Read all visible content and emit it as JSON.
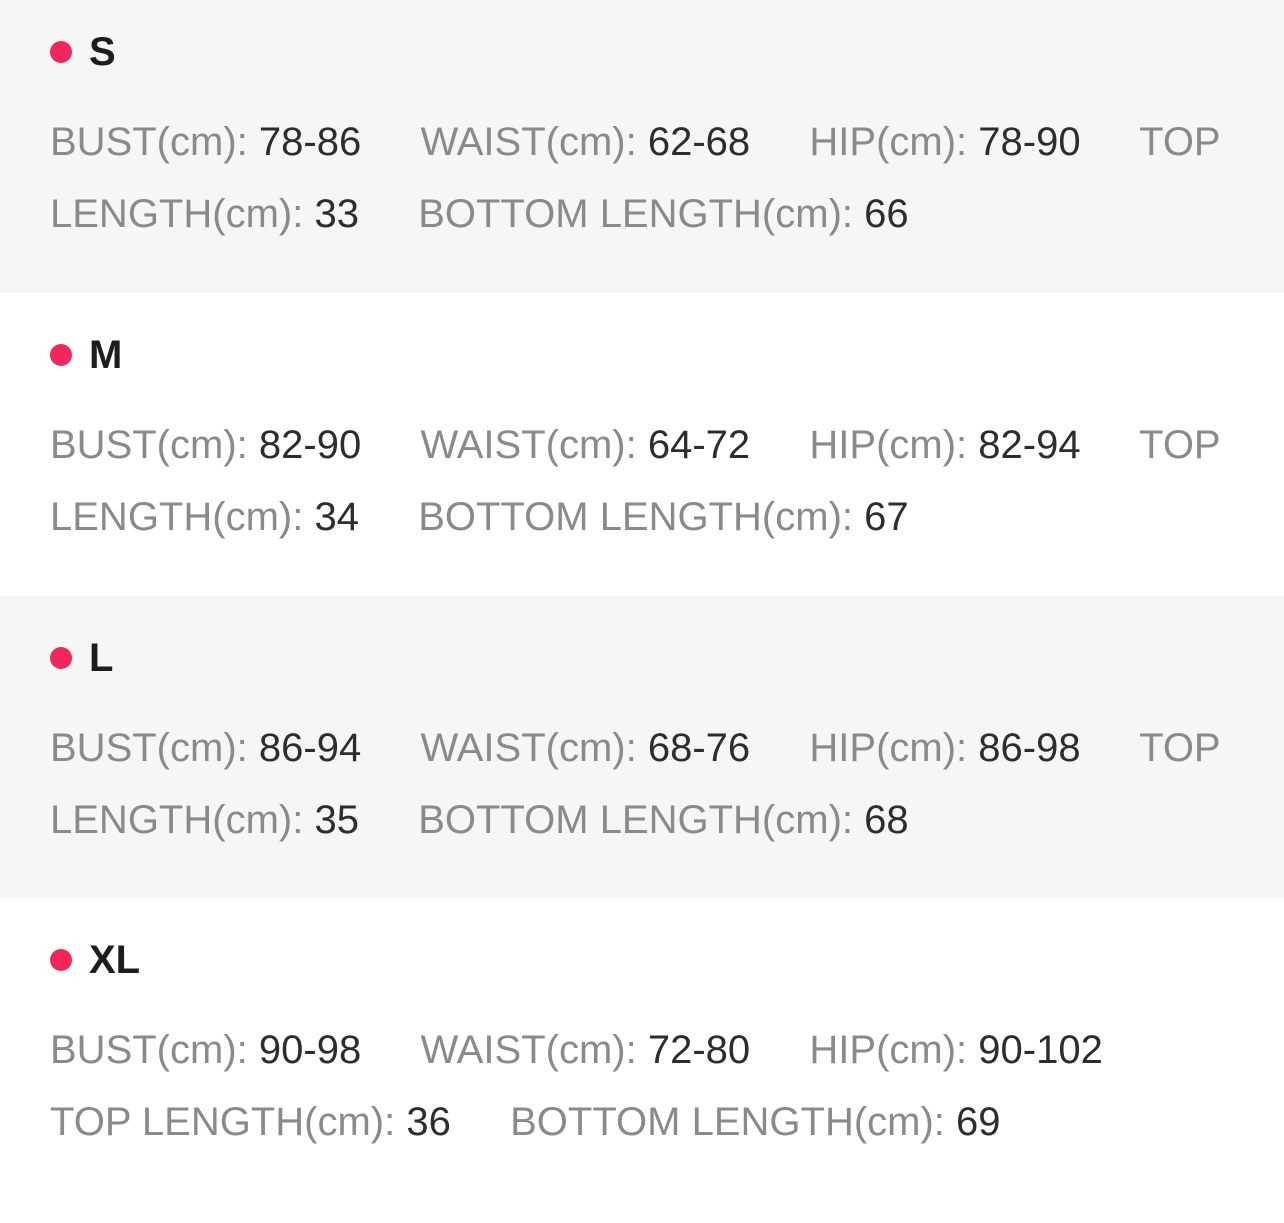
{
  "accent_color": "#f1275b",
  "sizes": [
    {
      "label": "S",
      "measurements": [
        {
          "label": "BUST(cm):",
          "value": "78-86"
        },
        {
          "label": "WAIST(cm):",
          "value": "62-68"
        },
        {
          "label": "HIP(cm):",
          "value": "78-90"
        },
        {
          "label": "TOP LENGTH(cm):",
          "value": "33"
        },
        {
          "label": "BOTTOM LENGTH(cm):",
          "value": "66"
        }
      ]
    },
    {
      "label": "M",
      "measurements": [
        {
          "label": "BUST(cm):",
          "value": "82-90"
        },
        {
          "label": "WAIST(cm):",
          "value": "64-72"
        },
        {
          "label": "HIP(cm):",
          "value": "82-94"
        },
        {
          "label": "TOP LENGTH(cm):",
          "value": "34"
        },
        {
          "label": "BOTTOM LENGTH(cm):",
          "value": "67"
        }
      ]
    },
    {
      "label": "L",
      "measurements": [
        {
          "label": "BUST(cm):",
          "value": "86-94"
        },
        {
          "label": "WAIST(cm):",
          "value": "68-76"
        },
        {
          "label": "HIP(cm):",
          "value": "86-98"
        },
        {
          "label": "TOP LENGTH(cm):",
          "value": "35"
        },
        {
          "label": "BOTTOM LENGTH(cm):",
          "value": "68"
        }
      ]
    },
    {
      "label": "XL",
      "measurements": [
        {
          "label": "BUST(cm):",
          "value": "90-98"
        },
        {
          "label": "WAIST(cm):",
          "value": "72-80"
        },
        {
          "label": "HIP(cm):",
          "value": "90-102"
        },
        {
          "label": "TOP LENGTH(cm):",
          "value": "36"
        },
        {
          "label": "BOTTOM LENGTH(cm):",
          "value": "69"
        }
      ]
    }
  ]
}
